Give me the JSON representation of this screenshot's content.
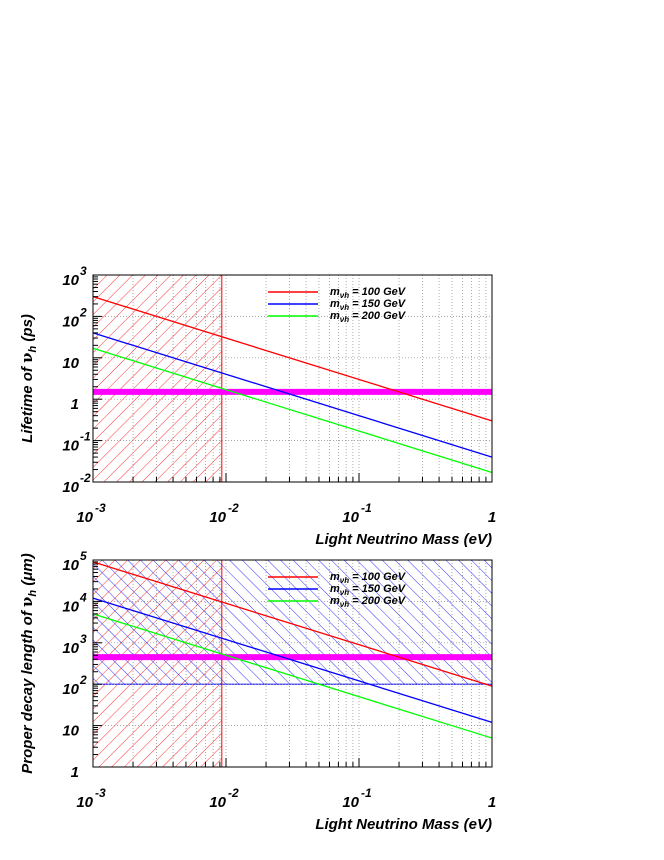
{
  "chart_data": [
    {
      "type": "line",
      "panel": "top",
      "xlabel": "Light Neutrino Mass (eV)",
      "ylabel": "Lifetime of ν_h (ps)",
      "ylabel_main": "Lifetime of ",
      "ylabel_symbol": "ν",
      "ylabel_sub": "h",
      "ylabel_unit": " (ps)",
      "xscale": "log",
      "yscale": "log",
      "xlim": [
        0.001,
        1
      ],
      "ylim": [
        0.01,
        1000
      ],
      "grid": true,
      "legend_position": "top-center",
      "x_ticks": [
        {
          "value": 0.001,
          "base": "10",
          "exp": "-3"
        },
        {
          "value": 0.01,
          "base": "10",
          "exp": "-2"
        },
        {
          "value": 0.1,
          "base": "10",
          "exp": "-1"
        },
        {
          "value": 1,
          "base": "1",
          "exp": ""
        }
      ],
      "y_ticks": [
        {
          "value": 0.01,
          "base": "10",
          "exp": "-2"
        },
        {
          "value": 0.1,
          "base": "10",
          "exp": "-1"
        },
        {
          "value": 1,
          "base": "1",
          "exp": ""
        },
        {
          "value": 10,
          "base": "10",
          "exp": ""
        },
        {
          "value": 100,
          "base": "10",
          "exp": "2"
        },
        {
          "value": 1000,
          "base": "10",
          "exp": "3"
        }
      ],
      "series": [
        {
          "name": "m_νh = 100  GeV",
          "label_main": "m",
          "label_sub": "νh",
          "label_rest": " = 100  GeV",
          "color": "#ff0000",
          "x": [
            0.001,
            1
          ],
          "y": [
            300,
            0.3
          ]
        },
        {
          "name": "m_νh = 150  GeV",
          "label_main": "m",
          "label_sub": "νh",
          "label_rest": " = 150  GeV",
          "color": "#0000ff",
          "x": [
            0.001,
            1
          ],
          "y": [
            40,
            0.04
          ]
        },
        {
          "name": "m_νh = 200  GeV",
          "label_main": "m",
          "label_sub": "νh",
          "label_rest": " = 200  GeV",
          "color": "#00ff00",
          "x": [
            0.001,
            1
          ],
          "y": [
            17,
            0.017
          ]
        }
      ],
      "horizontal_band": {
        "y": 1.5,
        "color": "#ff00ff"
      },
      "hatched_regions": [
        {
          "pattern": "red-hatch",
          "color": "#ff0000",
          "x": [
            0.001,
            0.0093
          ],
          "y": [
            0.01,
            1000
          ]
        }
      ]
    },
    {
      "type": "line",
      "panel": "bottom",
      "xlabel": "Light Neutrino Mass (eV)",
      "ylabel": "Proper decay length of ν_h (μm)",
      "ylabel_main": "Proper decay length of ",
      "ylabel_symbol": "ν",
      "ylabel_sub": "h",
      "ylabel_unit": " (μm)",
      "xscale": "log",
      "yscale": "log",
      "xlim": [
        0.001,
        1
      ],
      "ylim": [
        1,
        100000
      ],
      "grid": true,
      "legend_position": "top-center",
      "x_ticks": [
        {
          "value": 0.001,
          "base": "10",
          "exp": "-3"
        },
        {
          "value": 0.01,
          "base": "10",
          "exp": "-2"
        },
        {
          "value": 0.1,
          "base": "10",
          "exp": "-1"
        },
        {
          "value": 1,
          "base": "1",
          "exp": ""
        }
      ],
      "y_ticks": [
        {
          "value": 1,
          "base": "1",
          "exp": ""
        },
        {
          "value": 10,
          "base": "10",
          "exp": ""
        },
        {
          "value": 100,
          "base": "10",
          "exp": "2"
        },
        {
          "value": 1000,
          "base": "10",
          "exp": "3"
        },
        {
          "value": 10000,
          "base": "10",
          "exp": "4"
        },
        {
          "value": 100000,
          "base": "10",
          "exp": "5"
        }
      ],
      "series": [
        {
          "name": "m_νh = 100  GeV",
          "label_main": "m",
          "label_sub": "νh",
          "label_rest": " = 100  GeV",
          "color": "#ff0000",
          "x": [
            0.001,
            1
          ],
          "y": [
            90000,
            90
          ]
        },
        {
          "name": "m_νh = 150  GeV",
          "label_main": "m",
          "label_sub": "νh",
          "label_rest": " = 150  GeV",
          "color": "#0000ff",
          "x": [
            0.001,
            1
          ],
          "y": [
            12000,
            12
          ]
        },
        {
          "name": "m_νh = 200  GeV",
          "label_main": "m",
          "label_sub": "νh",
          "label_rest": " = 200  GeV",
          "color": "#00ff00",
          "x": [
            0.001,
            1
          ],
          "y": [
            5000,
            5
          ]
        }
      ],
      "horizontal_band": {
        "y": 450,
        "color": "#ff00ff"
      },
      "hatched_regions": [
        {
          "pattern": "red-hatch",
          "color": "#ff0000",
          "x": [
            0.001,
            0.0093
          ],
          "y": [
            1,
            100000
          ]
        },
        {
          "pattern": "blue-hatch",
          "color": "#0000ff",
          "x": [
            0.001,
            1
          ],
          "y": [
            100,
            100000
          ]
        }
      ]
    }
  ]
}
